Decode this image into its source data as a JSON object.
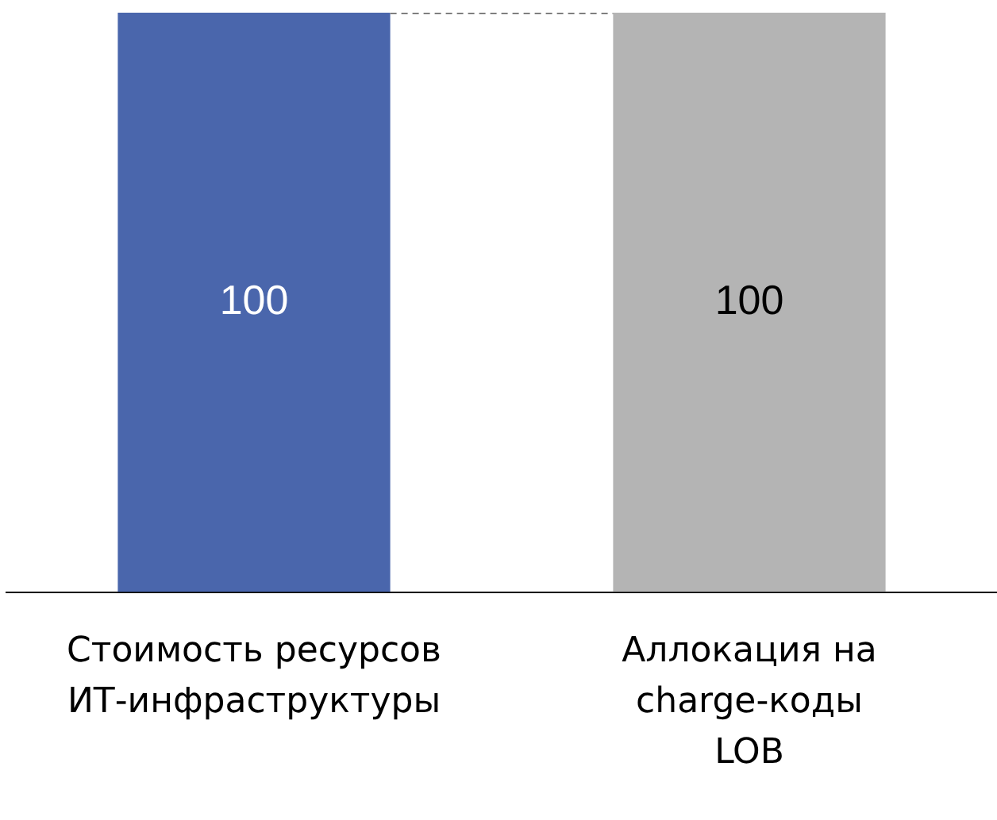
{
  "chart_data": {
    "type": "bar",
    "categories": [
      "Стоимость ресурсов\nИТ-инфраструктуры",
      "Аллокация на\ncharge-коды\nLOB"
    ],
    "values": [
      100,
      100
    ],
    "colors": [
      "#4a66ac",
      "#b4b4b4"
    ],
    "ylim": [
      0,
      100
    ],
    "data_labels": true,
    "grid": false,
    "legend": false,
    "tick_labels": "x",
    "ref_lines": [
      {
        "axis": "y",
        "value": 100,
        "color": "#7f7f7f",
        "line_style": "dashed"
      }
    ]
  }
}
